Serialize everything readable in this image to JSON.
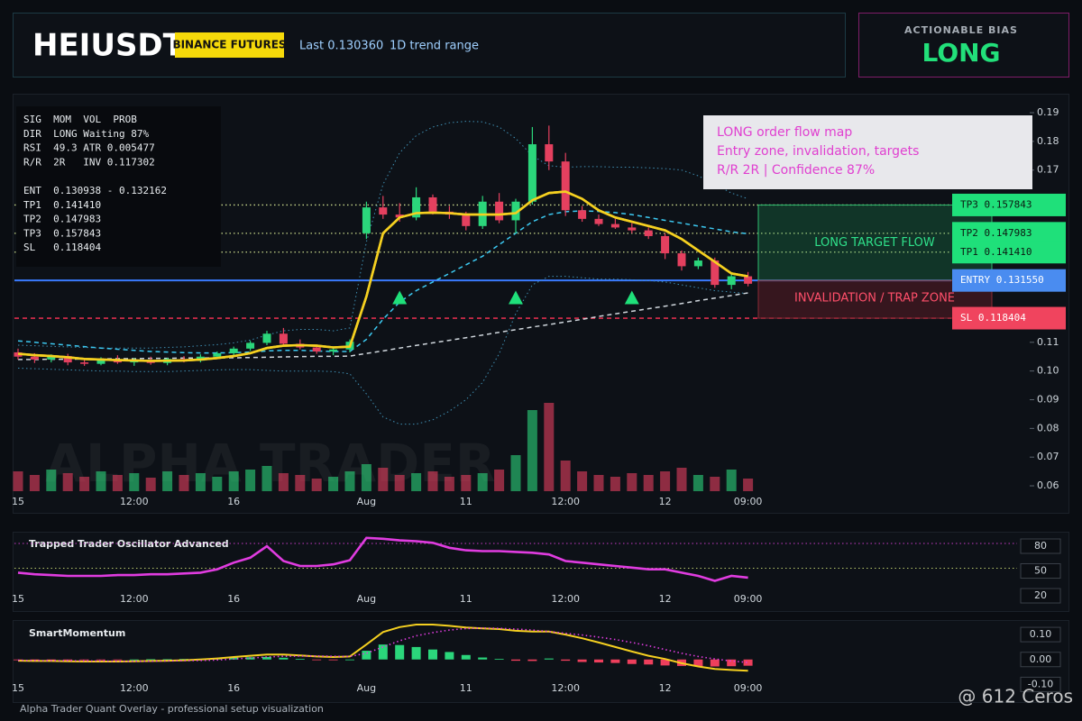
{
  "header": {
    "symbol": "HEIUSDT",
    "exchange": "BINANCE FUTURES",
    "last": "Last 0.130360",
    "range": "1D trend range"
  },
  "bias": {
    "label": "ACTIONABLE BIAS",
    "value": "LONG"
  },
  "footer": "Alpha Trader Quant Overlay - professional setup visualization",
  "credit": "@ 612 Ceros",
  "chart_data": [
    {
      "type": "candlestick",
      "watermark": "ALPHA TRADER",
      "categories": [
        "15",
        null,
        null,
        null,
        null,
        null,
        null,
        "12:00",
        null,
        null,
        null,
        null,
        null,
        "16",
        null,
        null,
        null,
        null,
        null,
        null,
        null,
        "Aug",
        null,
        null,
        null,
        null,
        null,
        "11",
        null,
        null,
        null,
        null,
        null,
        "12:00",
        null,
        null,
        null,
        null,
        null,
        "12",
        null,
        null,
        null,
        null,
        "09:00"
      ],
      "open": [
        0.1065,
        0.105,
        0.104,
        0.1052,
        0.103,
        0.1025,
        0.104,
        0.103,
        0.1038,
        0.1028,
        0.1042,
        0.1036,
        0.105,
        0.1062,
        0.1078,
        0.1098,
        0.113,
        0.1095,
        0.1082,
        0.1068,
        0.1075,
        0.148,
        0.157,
        0.1545,
        0.1535,
        0.1605,
        0.1555,
        0.1545,
        0.1505,
        0.159,
        0.1525,
        0.159,
        0.179,
        0.173,
        0.156,
        0.153,
        0.1512,
        0.15,
        0.149,
        0.147,
        0.141,
        0.1365,
        0.1385,
        0.13,
        0.133
      ],
      "high": [
        0.1078,
        0.1062,
        0.1058,
        0.106,
        0.1042,
        0.1048,
        0.1055,
        0.1045,
        0.105,
        0.1046,
        0.1052,
        0.1058,
        0.1068,
        0.1085,
        0.1105,
        0.114,
        0.115,
        0.111,
        0.1092,
        0.1082,
        0.111,
        0.159,
        0.161,
        0.1585,
        0.164,
        0.1615,
        0.1575,
        0.1555,
        0.161,
        0.162,
        0.16,
        0.185,
        0.1855,
        0.176,
        0.1575,
        0.1545,
        0.153,
        0.1515,
        0.15,
        0.148,
        0.142,
        0.1395,
        0.1395,
        0.134,
        0.1345
      ],
      "low": [
        0.104,
        0.1028,
        0.103,
        0.102,
        0.1018,
        0.102,
        0.1025,
        0.1018,
        0.1022,
        0.102,
        0.103,
        0.103,
        0.1042,
        0.1055,
        0.107,
        0.109,
        0.1085,
        0.1075,
        0.106,
        0.1055,
        0.1065,
        0.146,
        0.153,
        0.152,
        0.1525,
        0.1545,
        0.153,
        0.149,
        0.1495,
        0.1515,
        0.148,
        0.158,
        0.17,
        0.154,
        0.152,
        0.1505,
        0.1495,
        0.148,
        0.146,
        0.139,
        0.135,
        0.1355,
        0.129,
        0.1285,
        0.1295
      ],
      "close": [
        0.105,
        0.104,
        0.1052,
        0.103,
        0.1025,
        0.104,
        0.103,
        0.1038,
        0.1028,
        0.1042,
        0.1036,
        0.105,
        0.1062,
        0.1078,
        0.1098,
        0.113,
        0.1095,
        0.1082,
        0.1068,
        0.1075,
        0.1102,
        0.157,
        0.1545,
        0.1535,
        0.1605,
        0.1555,
        0.1545,
        0.1505,
        0.159,
        0.1525,
        0.159,
        0.179,
        0.173,
        0.156,
        0.153,
        0.1512,
        0.15,
        0.149,
        0.147,
        0.141,
        0.1365,
        0.1385,
        0.13,
        0.133,
        0.1304
      ],
      "volume": [
        22,
        18,
        24,
        20,
        16,
        22,
        18,
        20,
        15,
        22,
        18,
        20,
        16,
        22,
        24,
        28,
        20,
        18,
        14,
        16,
        22,
        30,
        26,
        18,
        20,
        22,
        16,
        18,
        20,
        24,
        40,
        90,
        98,
        34,
        22,
        18,
        16,
        20,
        18,
        22,
        26,
        18,
        16,
        24,
        14
      ],
      "up_color": "#2bd67b",
      "down_color": "#e4405f",
      "overlays": [
        {
          "color": "#3f8fb3",
          "style": "dotted",
          "values": [
            0.109,
            0.1088,
            0.1086,
            0.1084,
            0.1082,
            0.108,
            0.108,
            0.108,
            0.108,
            0.1082,
            0.1084,
            0.1088,
            0.1092,
            0.1098,
            0.1108,
            0.1125,
            0.114,
            0.1145,
            0.1145,
            0.114,
            0.115,
            0.145,
            0.165,
            0.176,
            0.182,
            0.185,
            0.1865,
            0.187,
            0.1868,
            0.185,
            0.181,
            0.175,
            0.1715,
            0.171,
            0.1712,
            0.1712,
            0.171,
            0.171,
            0.1708,
            0.1705,
            0.17,
            0.168,
            0.165,
            0.162,
            0.16
          ]
        },
        {
          "color": "#3f8fb3",
          "style": "dotted",
          "values": [
            0.101,
            0.1008,
            0.1006,
            0.1004,
            0.1002,
            0.1,
            0.1,
            0.0998,
            0.0998,
            0.0998,
            0.1,
            0.1002,
            0.1004,
            0.1005,
            0.1005,
            0.1002,
            0.1,
            0.1,
            0.1,
            0.0998,
            0.099,
            0.092,
            0.084,
            0.0815,
            0.0815,
            0.083,
            0.086,
            0.09,
            0.096,
            0.106,
            0.12,
            0.13,
            0.133,
            0.133,
            0.1325,
            0.132,
            0.132,
            0.1318,
            0.1315,
            0.131,
            0.13,
            0.129,
            0.128,
            0.1275,
            0.127
          ]
        },
        {
          "color": "#cfd6dc",
          "style": "dashed",
          "values": [
            0.104,
            0.104,
            0.1041,
            0.1041,
            0.1042,
            0.1042,
            0.1043,
            0.1043,
            0.1044,
            0.1044,
            0.1045,
            0.1045,
            0.1046,
            0.1046,
            0.1047,
            0.1048,
            0.1049,
            0.105,
            0.1051,
            0.1051,
            0.1052,
            0.1061,
            0.107,
            0.108,
            0.1089,
            0.1098,
            0.1107,
            0.1116,
            0.1125,
            0.1135,
            0.1144,
            0.1153,
            0.1162,
            0.1171,
            0.118,
            0.119,
            0.1199,
            0.1208,
            0.1217,
            0.1226,
            0.1235,
            0.1245,
            0.1254,
            0.1263,
            0.1272
          ]
        },
        {
          "color": "#3cc8f0",
          "style": "dashed",
          "values": [
            0.1105,
            0.11,
            0.1095,
            0.109,
            0.1085,
            0.108,
            0.1076,
            0.1072,
            0.1068,
            0.1066,
            0.1064,
            0.1063,
            0.1063,
            0.1064,
            0.1066,
            0.107,
            0.1072,
            0.1072,
            0.107,
            0.1068,
            0.1068,
            0.111,
            0.118,
            0.124,
            0.128,
            0.131,
            0.134,
            0.137,
            0.14,
            0.144,
            0.148,
            0.152,
            0.1545,
            0.1555,
            0.1558,
            0.1556,
            0.1552,
            0.1545,
            0.1535,
            0.1525,
            0.1515,
            0.1505,
            0.1495,
            0.1485,
            0.1478
          ]
        },
        {
          "color": "#f5d020",
          "style": "solid",
          "values": [
            0.106,
            0.1055,
            0.1052,
            0.1048,
            0.1042,
            0.104,
            0.1038,
            0.1037,
            0.1035,
            0.1036,
            0.1037,
            0.104,
            0.1045,
            0.1052,
            0.1062,
            0.108,
            0.1088,
            0.109,
            0.1088,
            0.1082,
            0.1085,
            0.126,
            0.148,
            0.1535,
            0.155,
            0.1552,
            0.155,
            0.1545,
            0.1545,
            0.1545,
            0.155,
            0.1595,
            0.162,
            0.1625,
            0.16,
            0.156,
            0.1535,
            0.152,
            0.1505,
            0.149,
            0.146,
            0.142,
            0.138,
            0.134,
            0.133
          ]
        }
      ],
      "signals": [
        null,
        null,
        null,
        null,
        null,
        null,
        null,
        null,
        null,
        null,
        null,
        null,
        null,
        null,
        null,
        null,
        null,
        null,
        null,
        null,
        null,
        null,
        null,
        0.1255,
        null,
        null,
        null,
        null,
        null,
        null,
        0.1255,
        null,
        null,
        null,
        null,
        null,
        null,
        0.1255,
        null,
        null,
        null,
        null,
        null,
        null,
        null
      ],
      "signal_color": "#1fe07a",
      "ylim": [
        0.057,
        0.195
      ],
      "yticks": [
        0.19,
        0.18,
        0.17,
        0.11,
        {
          "value": 0.1,
          "label": "0.10"
        },
        0.09,
        0.08,
        0.07,
        0.06
      ],
      "levels": [
        {
          "label": "TP3 0.157843",
          "value": 0.157843,
          "color": "#1fe07a",
          "line_color": "#c8d88a",
          "style": "dotted"
        },
        {
          "label": "TP2 0.147983",
          "value": 0.147983,
          "color": "#1fe07a",
          "line_color": "#c8d88a",
          "style": "dotted"
        },
        {
          "label": "TP1 0.141410",
          "value": 0.14141,
          "color": "#1fe07a",
          "line_color": "#c8d88a",
          "style": "dotted"
        },
        {
          "label": "ENTRY 0.131550",
          "value": 0.13155,
          "color": "#4a8cf0",
          "line_color": "#3a7bff",
          "style": "solid"
        },
        {
          "label": "SL 0.118404",
          "value": 0.118404,
          "color": "#f0445e",
          "line_color": "#ff3355",
          "style": "dashed"
        }
      ],
      "target_zone_label": "LONG TARGET FLOW",
      "trap_zone_label": "INVALIDATION / TRAP ZONE",
      "info_panel": [
        [
          "SIG  MOM  VOL  PROB",
          "DIR  LONG Waiting 87%",
          "RSI  49.3 ATR 0.005477",
          "R/R  2R   INV 0.117302"
        ],
        [
          "ENT  0.130938 - 0.132162",
          "TP1  0.141410",
          "TP2  0.147983",
          "TP3  0.157843",
          "SL   0.118404"
        ]
      ],
      "annotation": [
        "LONG order flow map",
        "Entry zone, invalidation, targets",
        "R/R 2R | Confidence 87%"
      ]
    },
    {
      "type": "line",
      "title": "Trapped Trader Oscillator Advanced",
      "series": [
        {
          "color": "#e03ce0",
          "style": "solid",
          "values": [
            48,
            46,
            45,
            44,
            44,
            44,
            45,
            45,
            46,
            46,
            47,
            48,
            52,
            60,
            66,
            80,
            62,
            56,
            56,
            58,
            63,
            90,
            89,
            87,
            86,
            84,
            78,
            75,
            74,
            74,
            73,
            72,
            70,
            62,
            60,
            58,
            56,
            54,
            52,
            52,
            48,
            44,
            38,
            44,
            42
          ]
        }
      ],
      "ylim": [
        10,
        92
      ],
      "yticks": [
        80,
        50,
        20
      ],
      "guides": [
        {
          "value": 80,
          "color": "#c73ac7"
        },
        {
          "value": 50,
          "color": "#b8c86a"
        }
      ]
    },
    {
      "type": "momentum",
      "title": "SmartMomentum",
      "series": [
        {
          "color": "#f5d020",
          "style": "solid",
          "values": [
            -0.005,
            -0.006,
            -0.006,
            -0.007,
            -0.008,
            -0.008,
            -0.008,
            -0.007,
            -0.006,
            -0.005,
            -0.003,
            0.0,
            0.004,
            0.01,
            0.015,
            0.02,
            0.02,
            0.016,
            0.012,
            0.01,
            0.012,
            0.06,
            0.11,
            0.13,
            0.14,
            0.14,
            0.135,
            0.128,
            0.125,
            0.122,
            0.115,
            0.112,
            0.112,
            0.1,
            0.085,
            0.068,
            0.05,
            0.032,
            0.015,
            0.002,
            -0.015,
            -0.028,
            -0.038,
            -0.042,
            -0.045
          ]
        },
        {
          "color": "#e03ce0",
          "style": "dotted",
          "values": [
            -0.003,
            -0.004,
            -0.005,
            -0.005,
            -0.006,
            -0.006,
            -0.007,
            -0.007,
            -0.007,
            -0.006,
            -0.005,
            -0.004,
            -0.002,
            0.002,
            0.006,
            0.01,
            0.013,
            0.014,
            0.014,
            0.013,
            0.012,
            0.025,
            0.05,
            0.075,
            0.095,
            0.108,
            0.118,
            0.124,
            0.126,
            0.125,
            0.122,
            0.118,
            0.112,
            0.105,
            0.098,
            0.09,
            0.08,
            0.068,
            0.055,
            0.04,
            0.025,
            0.012,
            0.002,
            -0.006,
            -0.012
          ]
        }
      ],
      "histogram": {
        "up_color": "#2bd67b",
        "down_color": "#ee3f5c",
        "values": [
          -0.002,
          -0.002,
          -0.001,
          -0.002,
          -0.002,
          -0.002,
          -0.001,
          0.0,
          0.001,
          0.001,
          0.002,
          0.003,
          0.006,
          0.008,
          0.009,
          0.01,
          0.007,
          0.002,
          -0.002,
          -0.003,
          0.0,
          0.035,
          0.06,
          0.058,
          0.05,
          0.04,
          0.03,
          0.018,
          0.008,
          0.002,
          -0.005,
          -0.006,
          0.004,
          -0.005,
          -0.01,
          -0.012,
          -0.014,
          -0.018,
          -0.02,
          -0.024,
          -0.026,
          -0.028,
          -0.028,
          -0.027,
          -0.025
        ]
      },
      "ylim": [
        -0.15,
        0.15
      ],
      "yticks": [
        {
          "value": 0.1,
          "label": "0.10"
        },
        {
          "value": 0,
          "label": "0.00"
        },
        {
          "value": -0.1,
          "label": "-0.10"
        }
      ]
    }
  ]
}
